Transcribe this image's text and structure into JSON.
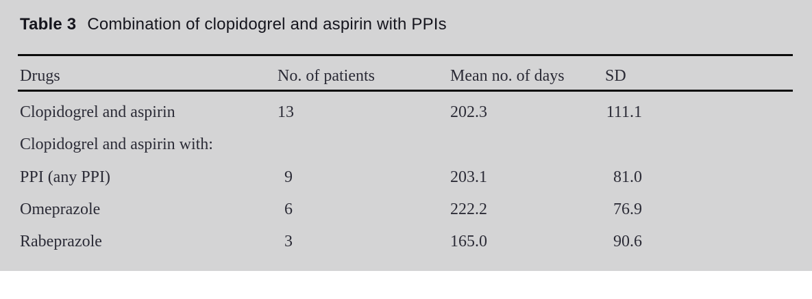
{
  "caption": {
    "label": "Table 3",
    "text": "Combination of clopidogrel and aspirin with PPIs"
  },
  "table": {
    "columns": [
      "Drugs",
      "No. of patients",
      "Mean no. of days",
      "SD"
    ],
    "rows": [
      {
        "drug": "Clopidogrel and aspirin",
        "patients": "13",
        "mean_days": "202.3",
        "sd": "111.1"
      },
      {
        "drug": "Clopidogrel and aspirin with:",
        "patients": "",
        "mean_days": "",
        "sd": ""
      },
      {
        "drug": "PPI (any PPI)",
        "patients": "9",
        "mean_days": "203.1",
        "sd": "81.0"
      },
      {
        "drug": "Omeprazole",
        "patients": "6",
        "mean_days": "222.2",
        "sd": "76.9"
      },
      {
        "drug": "Rabeprazole",
        "patients": "3",
        "mean_days": "165.0",
        "sd": "90.6"
      }
    ]
  },
  "colors": {
    "panel_background": "#d4d4d5",
    "rule": "#0a0a0a",
    "body_text": "#2b2b36",
    "title_text": "#15151d"
  }
}
